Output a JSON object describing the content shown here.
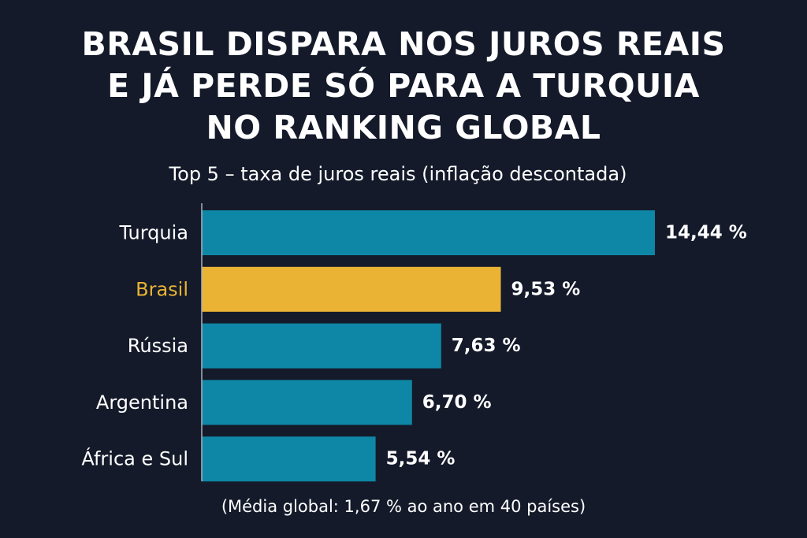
{
  "title_lines": [
    "BRASIL DISPARA NOS JUROS REAIS",
    "E JÁ PERDE SÓ PARA A TURQUIA",
    "NO RANKING GLOBAL"
  ],
  "subtitle": "Top 5 – taxa de juros reais (inflação descontada)",
  "footnote": "(Média global: 1,67 % ao ano em 40 países)",
  "colors": {
    "background": "#141a2a",
    "bar": "#0e87a6",
    "highlight": "#eab334",
    "text": "#ffffff",
    "axis": "#a9b0bd"
  },
  "chart_data": {
    "type": "bar",
    "orientation": "horizontal",
    "categories": [
      "Turquia",
      "Brasil",
      "Rússia",
      "Argentina",
      "África e Sul"
    ],
    "values": [
      14.44,
      9.53,
      7.63,
      6.7,
      5.54
    ],
    "value_labels": [
      "14,44 %",
      "9,53 %",
      "7,63 %",
      "6,70 %",
      "5,54 %"
    ],
    "highlight_category": "Brasil",
    "xlim": [
      0,
      14.44
    ],
    "grid": false,
    "legend": "none"
  }
}
